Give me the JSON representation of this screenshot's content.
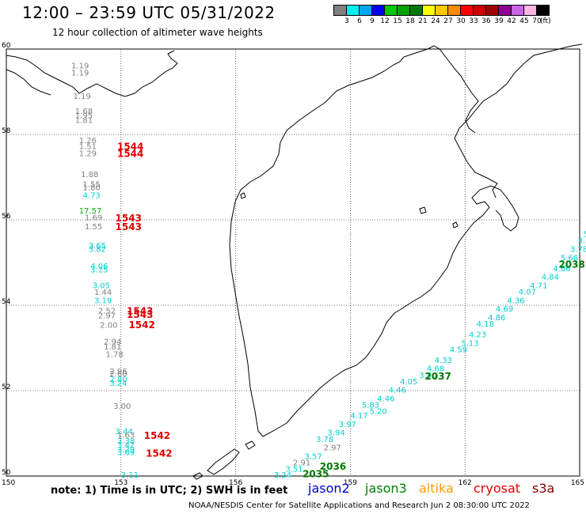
{
  "header": {
    "title": "12:00 – 23:59 UTC 05/31/2022",
    "subtitle": "12 hour collection of altimeter wave heights"
  },
  "legend": {
    "colors": [
      "#808080",
      "#00eeee",
      "#00a8f0",
      "#0000ee",
      "#00c800",
      "#00a000",
      "#007800",
      "#ffff00",
      "#ffc800",
      "#ff8c00",
      "#ff0000",
      "#c80000",
      "#a00000",
      "#900090",
      "#c864e6",
      "#ffb4e6",
      "#000000"
    ],
    "labels": [
      "3",
      "6",
      "9",
      "12",
      "15",
      "18",
      "21",
      "24",
      "27",
      "30",
      "33",
      "36",
      "39",
      "42",
      "45",
      "70"
    ],
    "unit": "(ft)"
  },
  "axes": {
    "lat_labels": [
      "60",
      "58",
      "56",
      "54",
      "52",
      "50"
    ],
    "lon_labels": [
      "150",
      "153",
      "156",
      "159",
      "162",
      "165"
    ]
  },
  "observations": [
    {
      "text": "1.19",
      "lon": 151.7,
      "lat": 59.55,
      "color": "#808080"
    },
    {
      "text": "1.19",
      "lon": 151.7,
      "lat": 59.38,
      "color": "#808080"
    },
    {
      "text": "1.19",
      "lon": 151.75,
      "lat": 58.83,
      "color": "#808080"
    },
    {
      "text": "1.68",
      "lon": 151.8,
      "lat": 58.48,
      "color": "#808080"
    },
    {
      "text": "1.95",
      "lon": 151.8,
      "lat": 58.38,
      "color": "#808080"
    },
    {
      "text": "1.81",
      "lon": 151.8,
      "lat": 58.27,
      "color": "#808080"
    },
    {
      "text": "1.26",
      "lon": 151.9,
      "lat": 57.8,
      "color": "#808080"
    },
    {
      "text": "1.51",
      "lon": 151.9,
      "lat": 57.66,
      "color": "#808080"
    },
    {
      "text": "1.29",
      "lon": 151.9,
      "lat": 57.49,
      "color": "#808080"
    },
    {
      "text": "1.88",
      "lon": 151.95,
      "lat": 57.0,
      "color": "#808080"
    },
    {
      "text": "1.55",
      "lon": 152.0,
      "lat": 56.77,
      "color": "#808080"
    },
    {
      "text": "1.80",
      "lon": 152.0,
      "lat": 56.69,
      "color": "#808080"
    },
    {
      "text": "4.73",
      "lon": 152.0,
      "lat": 56.51,
      "color": "#00d0d0"
    },
    {
      "text": "17.57",
      "lon": 151.9,
      "lat": 56.15,
      "color": "#00b000"
    },
    {
      "text": "1.69",
      "lon": 152.05,
      "lat": 55.99,
      "color": "#808080"
    },
    {
      "text": "1.55",
      "lon": 152.05,
      "lat": 55.78,
      "color": "#808080"
    },
    {
      "text": "3.65",
      "lon": 152.15,
      "lat": 55.33,
      "color": "#00d0d0"
    },
    {
      "text": "3.82",
      "lon": 152.15,
      "lat": 55.25,
      "color": "#00d0d0"
    },
    {
      "text": "4.06",
      "lon": 152.2,
      "lat": 54.85,
      "color": "#00d0d0"
    },
    {
      "text": "3.25",
      "lon": 152.2,
      "lat": 54.77,
      "color": "#00d0d0"
    },
    {
      "text": "3.05",
      "lon": 152.25,
      "lat": 54.4,
      "color": "#00d0d0"
    },
    {
      "text": "1.44",
      "lon": 152.3,
      "lat": 54.24,
      "color": "#808080"
    },
    {
      "text": "3.19",
      "lon": 152.3,
      "lat": 54.05,
      "color": "#00d0d0"
    },
    {
      "text": "2.52",
      "lon": 152.4,
      "lat": 53.81,
      "color": "#808080"
    },
    {
      "text": "2.97",
      "lon": 152.4,
      "lat": 53.69,
      "color": "#808080"
    },
    {
      "text": "2.00",
      "lon": 152.45,
      "lat": 53.47,
      "color": "#808080"
    },
    {
      "text": "2.94",
      "lon": 152.55,
      "lat": 53.08,
      "color": "#808080"
    },
    {
      "text": "1.81",
      "lon": 152.55,
      "lat": 52.96,
      "color": "#808080"
    },
    {
      "text": "1.78",
      "lon": 152.6,
      "lat": 52.79,
      "color": "#808080"
    },
    {
      "text": "2.96",
      "lon": 152.7,
      "lat": 52.39,
      "color": "#808080"
    },
    {
      "text": "2.60",
      "lon": 152.7,
      "lat": 52.33,
      "color": "#808080"
    },
    {
      "text": "2.80",
      "lon": 152.7,
      "lat": 52.2,
      "color": "#00d0d0"
    },
    {
      "text": "3.24",
      "lon": 152.7,
      "lat": 52.11,
      "color": "#00d0d0"
    },
    {
      "text": "3.00",
      "lon": 152.8,
      "lat": 51.57,
      "color": "#808080"
    },
    {
      "text": "3.44",
      "lon": 152.85,
      "lat": 50.98,
      "color": "#00d0d0"
    },
    {
      "text": "1.63",
      "lon": 152.9,
      "lat": 50.9,
      "color": "#808080"
    },
    {
      "text": "3.38",
      "lon": 152.9,
      "lat": 50.76,
      "color": "#00d0d0"
    },
    {
      "text": "3.42",
      "lon": 152.9,
      "lat": 50.67,
      "color": "#00d0d0"
    },
    {
      "text": "3.29",
      "lon": 152.9,
      "lat": 50.56,
      "color": "#00d0d0"
    },
    {
      "text": "3.89",
      "lon": 152.9,
      "lat": 50.49,
      "color": "#00d0d0"
    },
    {
      "text": "3.11",
      "lon": 153.0,
      "lat": 49.96,
      "color": "#00d0d0"
    },
    {
      "text": "3.24",
      "lon": 157.0,
      "lat": 49.96,
      "color": "#00d0d0"
    },
    {
      "text": "3.51",
      "lon": 157.3,
      "lat": 50.1,
      "color": "#00d0d0"
    },
    {
      "text": "2.91",
      "lon": 157.5,
      "lat": 50.25,
      "color": "#808080"
    },
    {
      "text": "3.57",
      "lon": 157.8,
      "lat": 50.4,
      "color": "#00d0d0"
    },
    {
      "text": "2.97",
      "lon": 158.3,
      "lat": 50.6,
      "color": "#808080"
    },
    {
      "text": "3.78",
      "lon": 158.1,
      "lat": 50.8,
      "color": "#00d0d0"
    },
    {
      "text": "3.94",
      "lon": 158.4,
      "lat": 50.95,
      "color": "#00d0d0"
    },
    {
      "text": "3.97",
      "lon": 158.7,
      "lat": 51.15,
      "color": "#00d0d0"
    },
    {
      "text": "4.17",
      "lon": 159.0,
      "lat": 51.35,
      "color": "#00d0d0"
    },
    {
      "text": "5.83",
      "lon": 159.3,
      "lat": 51.6,
      "color": "#00d0d0"
    },
    {
      "text": "5.20",
      "lon": 159.5,
      "lat": 51.45,
      "color": "#00d0d0"
    },
    {
      "text": "4.46",
      "lon": 159.7,
      "lat": 51.75,
      "color": "#00d0d0"
    },
    {
      "text": "4.46",
      "lon": 160.0,
      "lat": 51.95,
      "color": "#00d0d0"
    },
    {
      "text": "4.05",
      "lon": 160.3,
      "lat": 52.15,
      "color": "#00d0d0"
    },
    {
      "text": "3.90",
      "lon": 160.8,
      "lat": 52.3,
      "color": "#00d0d0"
    },
    {
      "text": "4.68",
      "lon": 161.0,
      "lat": 52.45,
      "color": "#00d0d0"
    },
    {
      "text": "4.33",
      "lon": 161.2,
      "lat": 52.65,
      "color": "#00d0d0"
    },
    {
      "text": "4.59",
      "lon": 161.6,
      "lat": 52.9,
      "color": "#00d0d0"
    },
    {
      "text": "5.13",
      "lon": 161.9,
      "lat": 53.05,
      "color": "#00d0d0"
    },
    {
      "text": "4.23",
      "lon": 162.1,
      "lat": 53.25,
      "color": "#00d0d0"
    },
    {
      "text": "4.18",
      "lon": 162.3,
      "lat": 53.5,
      "color": "#00d0d0"
    },
    {
      "text": "4.86",
      "lon": 162.6,
      "lat": 53.65,
      "color": "#00d0d0"
    },
    {
      "text": "4.69",
      "lon": 162.8,
      "lat": 53.85,
      "color": "#00d0d0"
    },
    {
      "text": "4.36",
      "lon": 163.1,
      "lat": 54.05,
      "color": "#00d0d0"
    },
    {
      "text": "4.07",
      "lon": 163.4,
      "lat": 54.25,
      "color": "#00d0d0"
    },
    {
      "text": "4.71",
      "lon": 163.7,
      "lat": 54.4,
      "color": "#00d0d0"
    },
    {
      "text": "4.84",
      "lon": 164.0,
      "lat": 54.6,
      "color": "#00d0d0"
    },
    {
      "text": "4.66",
      "lon": 164.3,
      "lat": 54.8,
      "color": "#00d0d0"
    },
    {
      "text": "5.66",
      "lon": 164.5,
      "lat": 55.05,
      "color": "#00d0d0"
    },
    {
      "text": "3.78",
      "lon": 164.75,
      "lat": 55.25,
      "color": "#00d0d0"
    },
    {
      "text": "3.7",
      "lon": 164.95,
      "lat": 55.45,
      "color": "#00d0d0"
    },
    {
      "text": "5",
      "lon": 165.1,
      "lat": 55.6,
      "color": "#00d0d0"
    }
  ],
  "pass_times": [
    {
      "text": "1544",
      "lon": 152.9,
      "lat": 57.64,
      "color": "#e00000"
    },
    {
      "text": "1544",
      "lon": 152.9,
      "lat": 57.47,
      "color": "#e00000"
    },
    {
      "text": "1543",
      "lon": 152.85,
      "lat": 55.96,
      "color": "#e00000"
    },
    {
      "text": "1543",
      "lon": 152.85,
      "lat": 55.76,
      "color": "#e00000"
    },
    {
      "text": "1543",
      "lon": 153.15,
      "lat": 53.79,
      "color": "#e00000"
    },
    {
      "text": "1543",
      "lon": 153.15,
      "lat": 53.7,
      "color": "#e00000"
    },
    {
      "text": "1542",
      "lon": 153.2,
      "lat": 53.46,
      "color": "#e00000"
    },
    {
      "text": "1542",
      "lon": 153.6,
      "lat": 50.87,
      "color": "#e00000"
    },
    {
      "text": "1542",
      "lon": 153.65,
      "lat": 50.45,
      "color": "#e00000"
    },
    {
      "text": "2036",
      "lon": 158.2,
      "lat": 50.15,
      "color": "#007800"
    },
    {
      "text": "2035",
      "lon": 157.75,
      "lat": 49.97,
      "color": "#007800"
    },
    {
      "text": "2037",
      "lon": 160.95,
      "lat": 52.26,
      "color": "#007800"
    },
    {
      "text": "2038",
      "lon": 164.45,
      "lat": 54.88,
      "color": "#007800"
    }
  ],
  "footer": {
    "note": "note: 1) Time is in UTC; 2) SWH is in feet",
    "satellites": [
      {
        "name": "jason2",
        "color": "#0000d0"
      },
      {
        "name": "jason3",
        "color": "#008000"
      },
      {
        "name": "altika",
        "color": "#ff9900"
      },
      {
        "name": "cryosat",
        "color": "#e00000"
      },
      {
        "name": "s3a",
        "color": "#800000"
      }
    ],
    "credit": "NOAA/NESDIS Center for Satellite Applications and Research   Jun  2 08:30:00 UTC 2022"
  }
}
